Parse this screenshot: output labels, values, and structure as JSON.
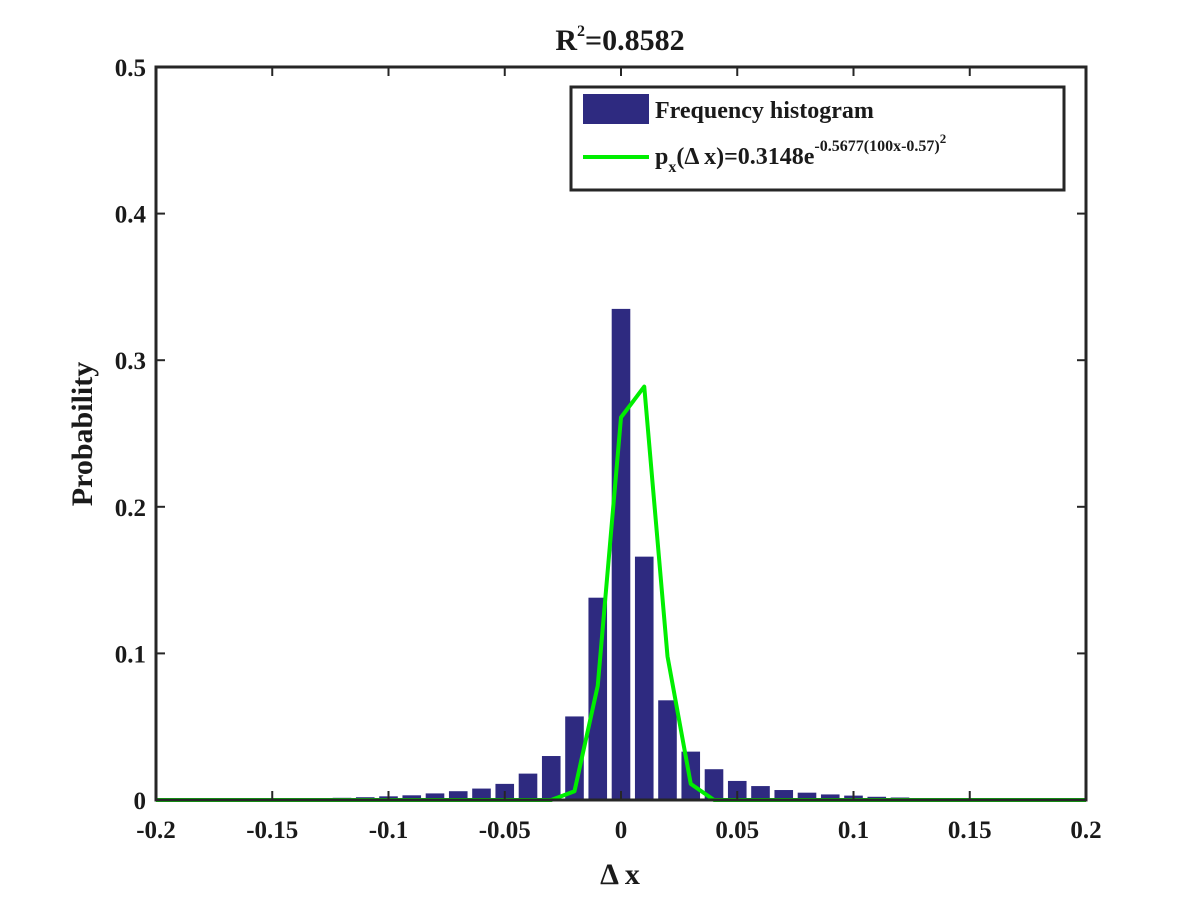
{
  "chart_data": {
    "type": "bar",
    "title": "R²=0.8582",
    "title_main": "R",
    "title_sup": "2",
    "title_rest": "=0.8582",
    "xlabel": "Δ x",
    "ylabel": "Probability",
    "xlim": [
      -0.2,
      0.2
    ],
    "ylim": [
      0,
      0.5
    ],
    "grid": false,
    "legend_position": "top-right",
    "xticks": [
      -0.2,
      -0.15,
      -0.1,
      -0.05,
      0,
      0.05,
      0.1,
      0.15,
      0.2
    ],
    "xtick_labels": [
      "-0.2",
      "-0.15",
      "-0.1",
      "-0.05",
      "0",
      "0.05",
      "0.1",
      "0.15",
      "0.2"
    ],
    "yticks": [
      0,
      0.1,
      0.2,
      0.3,
      0.4,
      0.5
    ],
    "ytick_labels": [
      "0",
      "0.1",
      "0.2",
      "0.3",
      "0.4",
      "0.5"
    ],
    "bar_color": "#2e2a80",
    "line_color": "#00ee00",
    "series": [
      {
        "name": "Frequency histogram",
        "kind": "bar",
        "bar_width": 0.008,
        "x": [
          -0.17,
          -0.16,
          -0.15,
          -0.14,
          -0.13,
          -0.12,
          -0.11,
          -0.1,
          -0.09,
          -0.08,
          -0.07,
          -0.06,
          -0.05,
          -0.04,
          -0.03,
          -0.02,
          -0.01,
          0.0,
          0.01,
          0.02,
          0.03,
          0.04,
          0.05,
          0.06,
          0.07,
          0.08,
          0.09,
          0.1,
          0.11,
          0.12,
          0.13,
          0.14,
          0.15,
          0.16
        ],
        "values": [
          0.0005,
          0.0006,
          0.0008,
          0.001,
          0.0012,
          0.0015,
          0.0019,
          0.0025,
          0.0032,
          0.0045,
          0.006,
          0.0078,
          0.011,
          0.018,
          0.03,
          0.057,
          0.138,
          0.335,
          0.166,
          0.068,
          0.033,
          0.021,
          0.013,
          0.0095,
          0.0068,
          0.005,
          0.0038,
          0.003,
          0.0022,
          0.0017,
          0.0013,
          0.0009,
          0.0007,
          0.0005
        ]
      },
      {
        "name": "fit",
        "kind": "line",
        "x": [
          -0.2,
          -0.03,
          -0.02,
          -0.01,
          0.0,
          0.01,
          0.02,
          0.03,
          0.04,
          0.2
        ],
        "values": [
          0,
          0,
          0.006,
          0.078,
          0.261,
          0.282,
          0.098,
          0.011,
          0.0,
          0
        ]
      }
    ],
    "legend": {
      "bar_label": "Frequency histogram",
      "line_label_p": "p",
      "line_label_sub": "x",
      "line_label_mid": "(Δ x)=0.3148e",
      "line_label_exp": "-0.5677(100x-0.57)",
      "line_label_exp2": "2"
    }
  }
}
